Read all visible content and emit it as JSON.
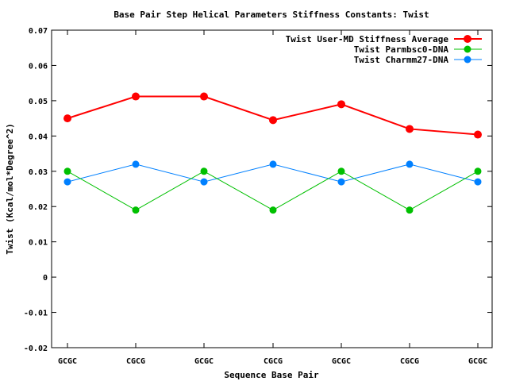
{
  "chart_data": {
    "type": "line",
    "title": "Base Pair Step Helical Parameters Stiffness Constants: Twist",
    "xlabel": "Sequence Base Pair",
    "ylabel": "Twist (Kcal/mol*Degree^2)",
    "categories": [
      "GCGC",
      "CGCG",
      "GCGC",
      "CGCG",
      "GCGC",
      "CGCG",
      "GCGC"
    ],
    "ylim": [
      -0.02,
      0.07
    ],
    "yticks": [
      -0.02,
      -0.01,
      0,
      0.01,
      0.02,
      0.03,
      0.04,
      0.05,
      0.06,
      0.07
    ],
    "ytick_labels": [
      "-0.02",
      "-0.01",
      "0",
      "0.01",
      "0.02",
      "0.03",
      "0.04",
      "0.05",
      "0.06",
      "0.07"
    ],
    "legend_position": "top-right",
    "grid": false,
    "series": [
      {
        "name": "Twist User-MD Stiffness Average",
        "color": "#ff0000",
        "values": [
          0.045,
          0.0512,
          0.0512,
          0.0445,
          0.049,
          0.042,
          0.0404
        ]
      },
      {
        "name": "Twist Parmbsc0-DNA",
        "color": "#00c000",
        "values": [
          0.03,
          0.019,
          0.03,
          0.019,
          0.03,
          0.019,
          0.03
        ]
      },
      {
        "name": "Twist Charmm27-DNA",
        "color": "#0080ff",
        "values": [
          0.027,
          0.032,
          0.027,
          0.032,
          0.027,
          0.032,
          0.027
        ]
      }
    ]
  }
}
